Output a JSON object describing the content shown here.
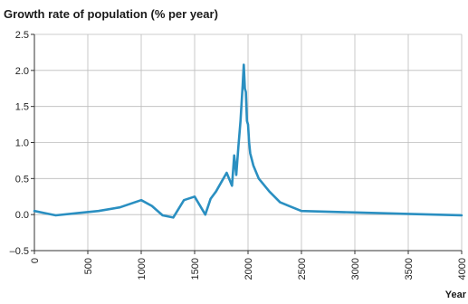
{
  "chart_data": {
    "type": "line",
    "title": "Growth rate of population (% per year)",
    "xlabel": "Year",
    "ylabel": "",
    "xlim": [
      0,
      4000
    ],
    "ylim": [
      -0.5,
      2.5
    ],
    "grid": true,
    "x_ticks": [
      0,
      500,
      1000,
      1500,
      2000,
      2500,
      3000,
      3500,
      4000
    ],
    "x_tick_labels": [
      "0",
      "500",
      "1000",
      "1500",
      "2000",
      "2500",
      "3000",
      "3500",
      "4000"
    ],
    "y_ticks": [
      -0.5,
      0.0,
      0.5,
      1.0,
      1.5,
      2.0,
      2.5
    ],
    "y_tick_labels": [
      "–0.5",
      "0.0",
      "0.5",
      "1.0",
      "1.5",
      "2.0",
      "2.5"
    ],
    "series": [
      {
        "color": "#2a8fc1",
        "x": [
          0,
          100,
          200,
          400,
          600,
          800,
          1000,
          1100,
          1200,
          1300,
          1400,
          1500,
          1600,
          1650,
          1700,
          1750,
          1800,
          1850,
          1870,
          1890,
          1910,
          1930,
          1950,
          1960,
          1970,
          1980,
          1990,
          2000,
          2010,
          2020,
          2050,
          2100,
          2200,
          2300,
          2400,
          2500,
          3000,
          3500,
          4000
        ],
        "y": [
          0.05,
          0.02,
          -0.01,
          0.02,
          0.05,
          0.1,
          0.2,
          0.12,
          -0.01,
          -0.04,
          0.2,
          0.25,
          0.0,
          0.22,
          0.32,
          0.45,
          0.58,
          0.4,
          0.82,
          0.55,
          0.95,
          1.3,
          1.8,
          2.08,
          1.75,
          1.7,
          1.3,
          1.25,
          1.0,
          0.85,
          0.68,
          0.5,
          0.32,
          0.17,
          0.11,
          0.05,
          0.03,
          0.01,
          -0.01
        ]
      }
    ]
  }
}
